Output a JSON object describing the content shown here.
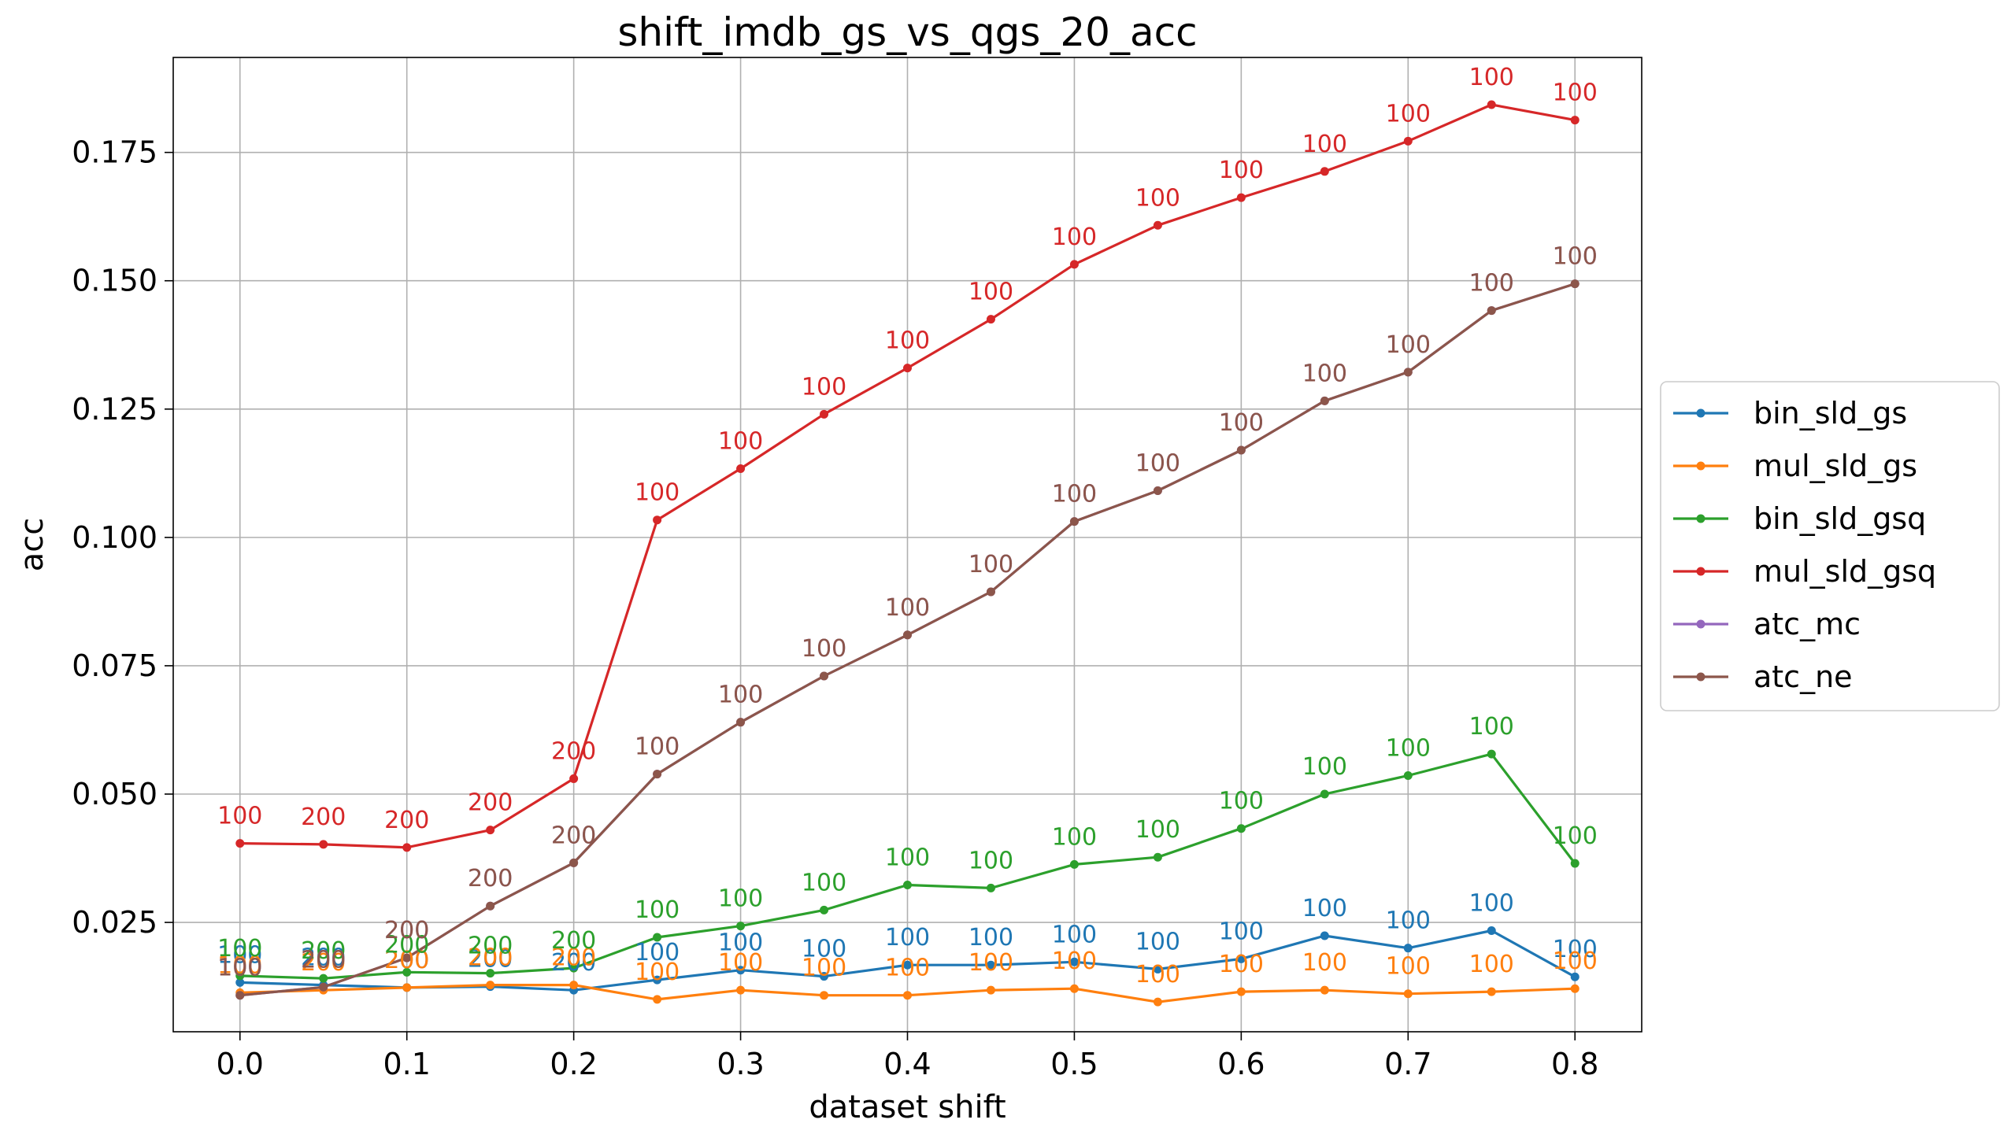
{
  "chart_data": {
    "type": "line",
    "title": "shift_imdb_gs_vs_qgs_20_acc",
    "xlabel": "dataset shift",
    "ylabel": "acc",
    "xlim": [
      -0.04,
      0.84
    ],
    "ylim": [
      0.0037,
      0.1935
    ],
    "x_ticks": [
      0.0,
      0.1,
      0.2,
      0.3,
      0.4,
      0.5,
      0.6,
      0.7,
      0.8
    ],
    "x_tick_labels": [
      "0.0",
      "0.1",
      "0.2",
      "0.3",
      "0.4",
      "0.5",
      "0.6",
      "0.7",
      "0.8"
    ],
    "y_ticks": [
      0.025,
      0.05,
      0.075,
      0.1,
      0.125,
      0.15,
      0.175
    ],
    "y_tick_labels": [
      "0.025",
      "0.050",
      "0.075",
      "0.100",
      "0.125",
      "0.150",
      "0.175"
    ],
    "grid": true,
    "legend_position": "center-right-outside",
    "x": [
      0.0,
      0.05,
      0.1,
      0.15,
      0.2,
      0.25,
      0.3,
      0.35,
      0.4,
      0.45,
      0.5,
      0.55,
      0.6,
      0.65,
      0.7,
      0.75,
      0.8
    ],
    "series": [
      {
        "name": "bin_sld_gs",
        "color": "#1f77b4",
        "values": [
          0.0133,
          0.0128,
          0.0123,
          0.0125,
          0.0118,
          0.0138,
          0.0157,
          0.0145,
          0.0167,
          0.0167,
          0.0173,
          0.0159,
          0.0179,
          0.0224,
          0.02,
          0.0234,
          0.0144
        ],
        "labels": [
          "100",
          "200",
          "200",
          "200",
          "200",
          "100",
          "100",
          "100",
          "100",
          "100",
          "100",
          "100",
          "100",
          "100",
          "100",
          "100",
          "100"
        ]
      },
      {
        "name": "mul_sld_gs",
        "color": "#ff7f0e",
        "values": [
          0.0113,
          0.0118,
          0.0123,
          0.0128,
          0.0128,
          0.01,
          0.0118,
          0.0108,
          0.0108,
          0.0118,
          0.0121,
          0.0095,
          0.0115,
          0.0118,
          0.0111,
          0.0115,
          0.0121
        ],
        "labels": [
          "100",
          "200",
          "200",
          "200",
          "200",
          "100",
          "100",
          "100",
          "100",
          "100",
          "100",
          "100",
          "100",
          "100",
          "100",
          "100",
          "100"
        ]
      },
      {
        "name": "bin_sld_gsq",
        "color": "#2ca02c",
        "values": [
          0.0146,
          0.0141,
          0.0153,
          0.0151,
          0.0161,
          0.0221,
          0.0243,
          0.0274,
          0.0323,
          0.0317,
          0.0363,
          0.0377,
          0.0433,
          0.05,
          0.0536,
          0.0578,
          0.0365
        ],
        "labels": [
          "100",
          "200",
          "200",
          "200",
          "200",
          "100",
          "100",
          "100",
          "100",
          "100",
          "100",
          "100",
          "100",
          "100",
          "100",
          "100",
          "100"
        ]
      },
      {
        "name": "mul_sld_gsq",
        "color": "#d62728",
        "values": [
          0.0404,
          0.0402,
          0.0396,
          0.043,
          0.053,
          0.1034,
          0.1134,
          0.124,
          0.133,
          0.1425,
          0.1532,
          0.1608,
          0.1662,
          0.1713,
          0.1772,
          0.1843,
          0.1813
        ],
        "labels": [
          "100",
          "200",
          "200",
          "200",
          "200",
          "100",
          "100",
          "100",
          "100",
          "100",
          "100",
          "100",
          "100",
          "100",
          "100",
          "100",
          "100"
        ]
      },
      {
        "name": "atc_mc",
        "color": "#9467bd",
        "values": [
          0.0108,
          0.0124,
          0.0181,
          0.0282,
          0.0366,
          0.0539,
          0.064,
          0.073,
          0.081,
          0.0894,
          0.1031,
          0.1091,
          0.117,
          0.1266,
          0.1322,
          0.1442,
          0.1494
        ],
        "labels": [
          "100",
          "200",
          "200",
          "200",
          "200",
          "100",
          "100",
          "100",
          "100",
          "100",
          "100",
          "100",
          "100",
          "100",
          "100",
          "100",
          "100"
        ]
      },
      {
        "name": "atc_ne",
        "color": "#8c564b",
        "values": [
          0.0108,
          0.0124,
          0.0181,
          0.0282,
          0.0366,
          0.0539,
          0.064,
          0.073,
          0.081,
          0.0894,
          0.1031,
          0.1091,
          0.117,
          0.1266,
          0.1322,
          0.1442,
          0.1494
        ],
        "labels": [
          "100",
          "200",
          "200",
          "200",
          "200",
          "100",
          "100",
          "100",
          "100",
          "100",
          "100",
          "100",
          "100",
          "100",
          "100",
          "100",
          "100"
        ]
      }
    ]
  }
}
